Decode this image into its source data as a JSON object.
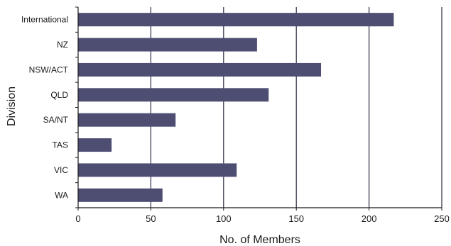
{
  "chart_data": {
    "type": "bar",
    "orientation": "horizontal",
    "categories": [
      "International",
      "NZ",
      "NSW/ACT",
      "QLD",
      "SA/NT",
      "TAS",
      "VIC",
      "WA"
    ],
    "values": [
      217,
      123,
      167,
      131,
      67,
      23,
      109,
      58
    ],
    "xlabel": "No. of Members",
    "ylabel": "Division",
    "xlim": [
      0,
      250
    ],
    "xticks": [
      0,
      50,
      100,
      150,
      200,
      250
    ],
    "grid": "vertical",
    "legend": "none",
    "colors": {
      "bar": "#4d4e72",
      "grid": "#2a2a45",
      "axis": "#1a1a1a"
    }
  }
}
